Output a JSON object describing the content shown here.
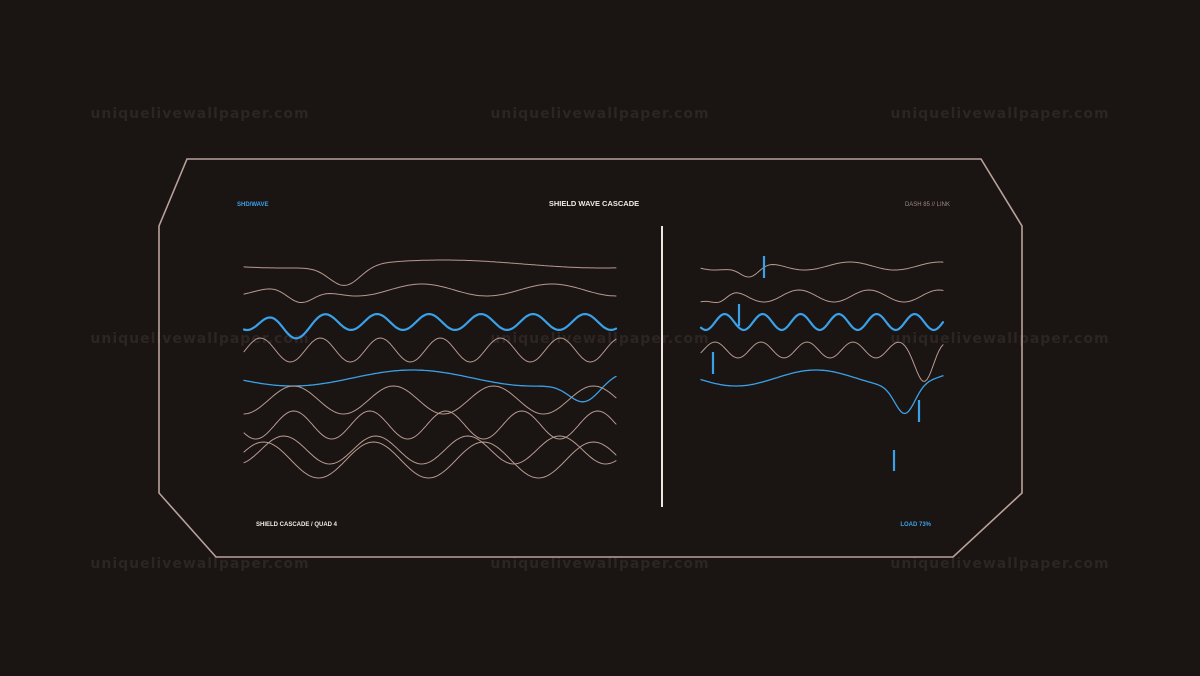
{
  "watermark": "uniquelivewallpaper.com",
  "hud": {
    "tag_left": "SHD/WAVE",
    "title": "SHIELD WAVE CASCADE",
    "tag_right": "DASH 85 // LINK",
    "footer_left": "SHIELD CASCADE / QUAD 4",
    "footer_right": "LOAD 73%"
  },
  "colors": {
    "background": "#1a1412",
    "frame": "#b9a29a",
    "wave_muted": "#b79a90",
    "accent": "#3aa1e8",
    "title_text": "#f1e9e2",
    "watermark": "#2c2522"
  }
}
